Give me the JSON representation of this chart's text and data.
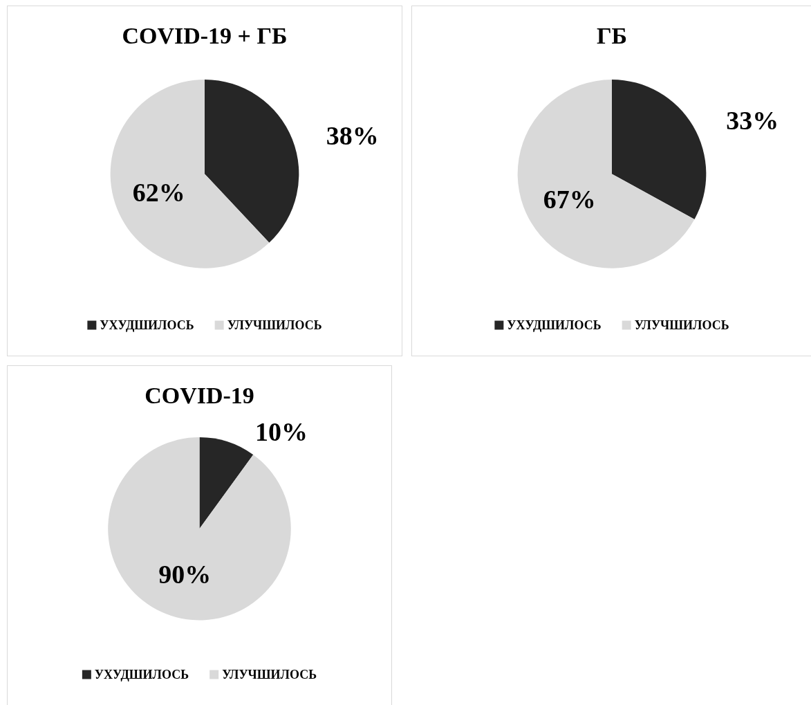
{
  "chart_data": [
    {
      "type": "pie",
      "title": "COVID-19 + ГБ",
      "categories": [
        "УХУДШИЛОСЬ",
        "УЛУЧШИЛОСЬ"
      ],
      "values": [
        38,
        62
      ],
      "value_labels": [
        "38%",
        "62%"
      ],
      "colors": [
        "#262626",
        "#d9d9d9"
      ],
      "legend": "bottom"
    },
    {
      "type": "pie",
      "title": "ГБ",
      "categories": [
        "УХУДШИЛОСЬ",
        "УЛУЧШИЛОСЬ"
      ],
      "values": [
        33,
        67
      ],
      "value_labels": [
        "33%",
        "67%"
      ],
      "colors": [
        "#262626",
        "#d9d9d9"
      ],
      "legend": "bottom"
    },
    {
      "type": "pie",
      "title": "COVID-19",
      "categories": [
        "УХУДШИЛОСЬ",
        "УЛУЧШИЛОСЬ"
      ],
      "values": [
        10,
        90
      ],
      "value_labels": [
        "10%",
        "90%"
      ],
      "colors": [
        "#262626",
        "#d9d9d9"
      ],
      "legend": "bottom"
    }
  ]
}
